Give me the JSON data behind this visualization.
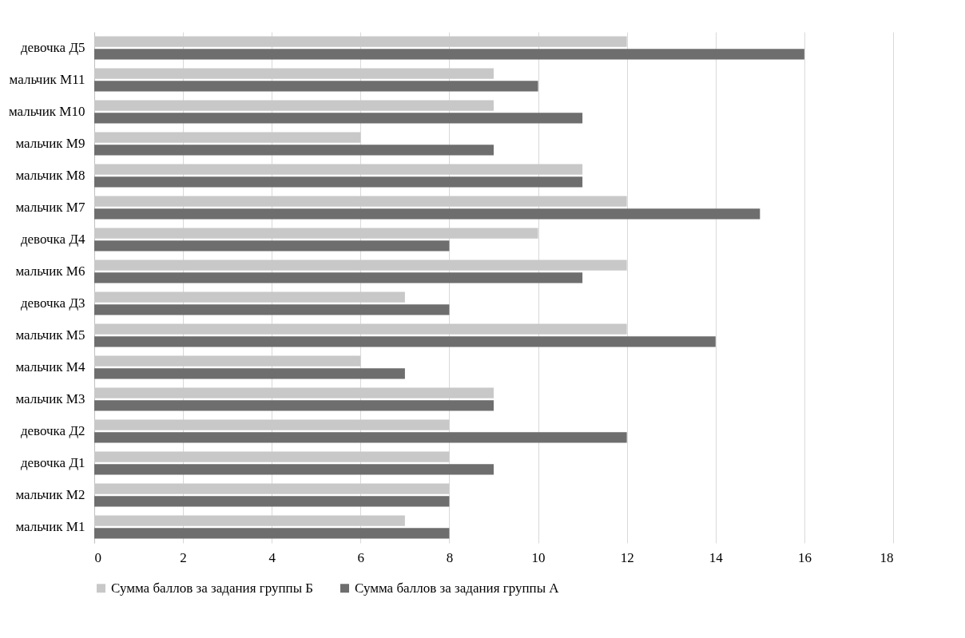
{
  "chart_data": {
    "type": "bar",
    "orientation": "horizontal",
    "categories": [
      "девочка Д5",
      "мальчик М11",
      "мальчик М10",
      "мальчик М9",
      "мальчик М8",
      "мальчик М7",
      "девочка Д4",
      "мальчик М6",
      "девочка Д3",
      "мальчик М5",
      "мальчик М4",
      "мальчик М3",
      "девочка Д2",
      "девочка Д1",
      "мальчик М2",
      "мальчик М1"
    ],
    "series": [
      {
        "name": "Сумма баллов за задания группы Б",
        "color": "#c8c8c8",
        "values": [
          12,
          9,
          9,
          6,
          11,
          12,
          10,
          12,
          7,
          12,
          6,
          9,
          8,
          8,
          8,
          7
        ]
      },
      {
        "name": "Сумма баллов за задания группы А",
        "color": "#6e6e6e",
        "values": [
          16,
          10,
          11,
          9,
          11,
          15,
          8,
          11,
          8,
          14,
          7,
          9,
          12,
          9,
          8,
          8
        ]
      }
    ],
    "xlim": [
      0,
      18
    ],
    "xticks": [
      0,
      2,
      4,
      6,
      8,
      10,
      12,
      14,
      16,
      18
    ],
    "grid": "x",
    "legend": "bottom"
  }
}
